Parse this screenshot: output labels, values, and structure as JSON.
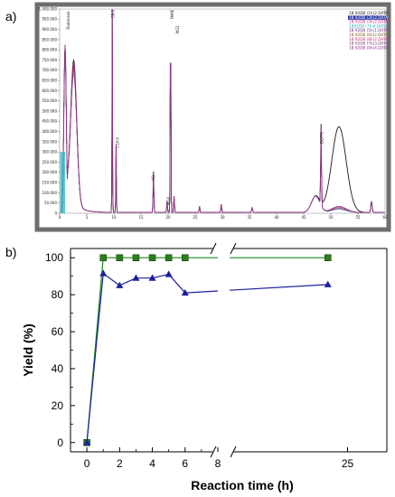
{
  "panels": {
    "a": "a)",
    "b": "b)"
  },
  "chart_data": [
    {
      "type": "line",
      "panel": "a",
      "y_ticks": [
        "1.000.000",
        "950.000",
        "900.000",
        "850.000",
        "800.000",
        "750.000",
        "700.000",
        "650.000",
        "600.000",
        "550.000",
        "500.000",
        "450.000",
        "400.000",
        "350.000",
        "300.000",
        "250.000",
        "200.000",
        "150.000",
        "100.000",
        "50.000",
        "0"
      ],
      "x_ticks": [
        "0",
        "5",
        "10",
        "15",
        "20",
        "25",
        "30",
        "35",
        "40",
        "45",
        "50",
        "55",
        "60"
      ],
      "ylim": [
        0,
        1000000
      ],
      "xlim": [
        0,
        60
      ],
      "legend": [
        "1B 92DB (1h)2.DATA",
        "1B 92DB (2h)2.DATA",
        "1B 92DB (3h)2.DATA",
        "1B92DB (7h)4.DATA",
        "1B 92DB (5h)1.DATA",
        "1B 92DB (6h)2.DATA",
        "1B 92DB (8h)2.DATA",
        "1B 92DB (7h)3.DATA",
        "1B 92DB (0h)4.DATA"
      ],
      "legend_colors": [
        "#1a1a1a",
        "#2e3aa8",
        "#d0309c",
        "#2aaeb0",
        "#6a2b8e",
        "#8a5a2b",
        "#c0306a",
        "#6a3a7a",
        "#9a2a90"
      ],
      "peak_labels": [
        "Dodecane",
        "C8:0",
        "C10:0",
        "HO",
        "FAME",
        "MG1",
        "MG0",
        "DG/TG"
      ]
    },
    {
      "type": "line",
      "panel": "b",
      "xlabel": "Reaction time (h)",
      "ylabel": "Yield (%)",
      "ylim": [
        0,
        100
      ],
      "y_ticks": [
        0,
        20,
        40,
        60,
        80,
        100
      ],
      "x_ticks": [
        0,
        2,
        4,
        6,
        8,
        25
      ],
      "x_break_after": 8,
      "series": [
        {
          "color": "#1e8a1e",
          "marker": "square",
          "marker_fill": "#2e7d1e",
          "x": [
            0,
            1,
            2,
            3,
            4,
            5,
            6,
            24
          ],
          "y": [
            0,
            100,
            100,
            100,
            100,
            100,
            100,
            100
          ]
        },
        {
          "color": "#1c1f9e",
          "marker": "triangle",
          "marker_fill": "#1c1f9e",
          "x": [
            0,
            1,
            2,
            3,
            4,
            5,
            6,
            24
          ],
          "y": [
            0,
            91.5,
            85,
            89,
            89,
            91,
            81,
            85.5
          ]
        }
      ]
    }
  ]
}
